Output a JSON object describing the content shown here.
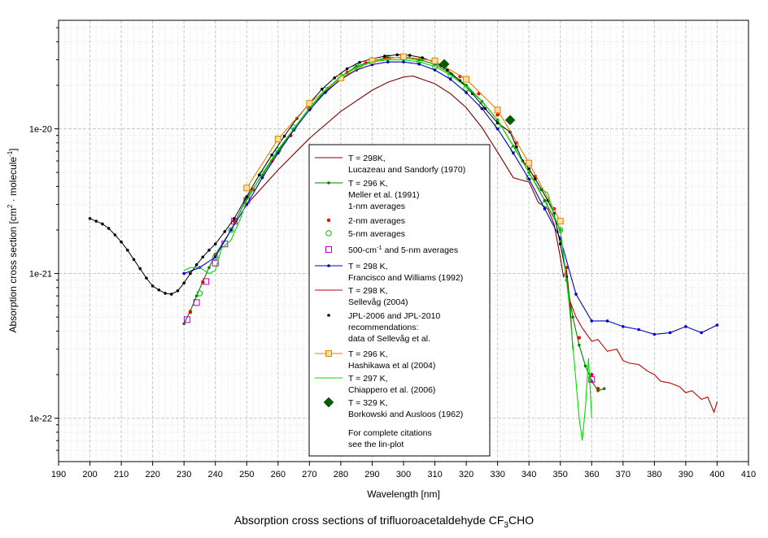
{
  "chart_data": {
    "type": "line",
    "y_scale": "log",
    "xlim": [
      190,
      410
    ],
    "ylim_log10": [
      -22.3,
      -19.25
    ],
    "x_ticks": [
      190,
      200,
      210,
      220,
      230,
      240,
      250,
      260,
      270,
      280,
      290,
      300,
      310,
      320,
      330,
      340,
      350,
      360,
      370,
      380,
      390,
      400,
      410
    ],
    "y_ticks": [
      {
        "value": 1e-22,
        "label": "1e-22"
      },
      {
        "value": 1e-21,
        "label": "1e-21"
      },
      {
        "value": 1e-20,
        "label": "1e-20"
      }
    ],
    "xlabel": "Wavelength [nm]",
    "ylabel": "Absorption cross section [cm",
    "ylabel_sup1": "2",
    "ylabel_mid": " · molecule",
    "ylabel_sup2": "-1",
    "ylabel_end": "]",
    "grid": true,
    "legend_position": "center-right",
    "series": [
      {
        "name": "lucazeau",
        "color": "#800000",
        "marker": "none",
        "label_lines": [
          "T = 298K,",
          "Lucazeau and Sandorfy (1970)"
        ],
        "x": [
          250,
          260,
          270,
          280,
          290,
          295,
          300,
          303,
          306,
          310,
          315,
          320,
          325,
          330,
          335,
          338,
          340,
          343,
          346,
          348,
          350,
          351,
          352,
          353,
          354
        ],
        "y": [
          3e-21,
          5.2e-21,
          8.6e-21,
          1.32e-20,
          1.85e-20,
          2.1e-20,
          2.28e-20,
          2.32e-20,
          2.2e-20,
          2.05e-20,
          1.75e-20,
          1.4e-20,
          1.02e-20,
          6.9e-21,
          4.6e-21,
          4.4e-21,
          4.3e-21,
          3.1e-21,
          2.8e-21,
          2.2e-21,
          1.3e-21,
          9.5e-22,
          1.05e-21,
          6.5e-22,
          3e-22
        ]
      },
      {
        "name": "meller_1nm",
        "color": "#008000",
        "marker": "dot",
        "label_lines": [
          "T = 296 K,",
          "Meller et al. (1991)",
          "1-nm averages"
        ],
        "x": [
          230,
          232,
          234,
          236,
          238,
          240,
          245,
          250,
          255,
          260,
          265,
          270,
          275,
          280,
          285,
          290,
          295,
          300,
          305,
          310,
          315,
          320,
          325,
          330,
          335,
          340,
          345,
          350,
          352,
          354,
          356,
          358,
          360,
          362,
          364
        ],
        "y": [
          4.5e-22,
          5.5e-22,
          7e-22,
          8.8e-22,
          1.1e-21,
          1.35e-21,
          2e-21,
          3.3e-21,
          4.8e-21,
          7e-21,
          1e-20,
          1.4e-20,
          1.8e-20,
          2.3e-20,
          2.7e-20,
          2.95e-20,
          3.1e-20,
          3.1e-20,
          3e-20,
          2.8e-20,
          2.4e-20,
          2e-20,
          1.55e-20,
          1.15e-20,
          7.6e-21,
          5e-21,
          3.2e-21,
          2e-21,
          9e-22,
          5e-22,
          3.2e-22,
          2.3e-22,
          1.8e-22,
          1.55e-22,
          1.6e-22
        ]
      },
      {
        "name": "two_nm",
        "color": "#ff0000",
        "marker": "reddot",
        "label_lines": [
          "2-nm averages"
        ],
        "x": [
          232,
          236,
          240,
          246,
          252,
          258,
          264,
          270,
          276,
          282,
          288,
          294,
          300,
          306,
          312,
          318,
          324,
          330,
          336,
          342,
          348,
          352,
          356,
          360,
          362
        ],
        "y": [
          5.4e-22,
          8.7e-22,
          1.35e-21,
          2.3e-21,
          3.8e-21,
          6e-21,
          9e-21,
          1.38e-20,
          1.9e-20,
          2.45e-20,
          2.85e-20,
          3.1e-20,
          3.15e-20,
          3.05e-20,
          2.75e-20,
          2.3e-20,
          1.75e-20,
          1.25e-20,
          8e-21,
          4.7e-21,
          2.8e-21,
          1.1e-21,
          3.6e-22,
          2e-22,
          1.6e-22
        ]
      },
      {
        "name": "five_nm",
        "color": "#00c000",
        "marker": "circle",
        "label_lines": [
          "5-nm averages"
        ],
        "x": [
          235,
          240,
          245,
          250,
          255,
          260,
          265,
          270,
          275,
          280,
          285,
          290,
          295,
          300,
          305,
          310,
          315,
          320,
          325,
          330,
          335,
          340,
          345,
          350
        ],
        "y": [
          7.3e-22,
          1.3e-21,
          2e-21,
          3.2e-21,
          4.9e-21,
          7.1e-21,
          1.02e-20,
          1.4e-20,
          1.85e-20,
          2.3e-20,
          2.7e-20,
          2.95e-20,
          3.1e-20,
          3.1e-20,
          2.95e-20,
          2.7e-20,
          2.35e-20,
          1.9e-20,
          1.45e-20,
          1.05e-20,
          7.2e-21,
          4.6e-21,
          3e-21,
          2e-21
        ]
      },
      {
        "name": "five_hundred",
        "color": "#c000c0",
        "marker": "square",
        "label_lines": [
          "500-cm",
          "-1",
          " and 5-nm averages"
        ],
        "x": [
          231,
          234,
          237,
          240,
          243,
          246,
          250,
          360
        ],
        "y": [
          4.8e-22,
          6.3e-22,
          8.8e-22,
          1.18e-21,
          1.6e-21,
          2.3e-21,
          3.2e-21,
          1.85e-22
        ]
      },
      {
        "name": "francisco",
        "color": "#0000c0",
        "marker": "dot",
        "label_lines": [
          "T = 298 K,",
          "Francisco and Williams (1992)"
        ],
        "x": [
          230,
          235,
          240,
          245,
          250,
          255,
          260,
          265,
          270,
          275,
          280,
          285,
          290,
          295,
          300,
          305,
          310,
          315,
          320,
          325,
          330,
          335,
          340,
          345,
          350,
          355,
          360,
          365,
          370,
          375,
          380,
          385,
          390,
          395,
          400
        ],
        "y": [
          1e-21,
          1.1e-21,
          1.3e-21,
          2e-21,
          3e-21,
          4.6e-21,
          6.8e-21,
          9.8e-21,
          1.35e-20,
          1.78e-20,
          2.2e-20,
          2.55e-20,
          2.78e-20,
          2.9e-20,
          2.9e-20,
          2.8e-20,
          2.55e-20,
          2.2e-20,
          1.78e-20,
          1.38e-20,
          1e-20,
          6.8e-21,
          4.5e-21,
          2.8e-21,
          1.75e-21,
          7.2e-22,
          4.7e-22,
          4.7e-22,
          4.3e-22,
          4.1e-22,
          3.8e-22,
          3.9e-22,
          4.3e-22,
          3.9e-22,
          4.4e-22
        ]
      },
      {
        "name": "sellevag",
        "color": "#c00000",
        "marker": "none",
        "label_lines": [
          "T = 298 K,",
          "Sellevåg (2004)"
        ],
        "x": [
          353,
          355,
          357,
          360,
          362,
          365,
          368,
          370,
          372,
          375,
          378,
          380,
          382,
          385,
          388,
          390,
          392,
          395,
          397,
          399,
          400
        ],
        "y": [
          6.5e-22,
          5e-22,
          4.2e-22,
          3.4e-22,
          3.5e-22,
          2.9e-22,
          3e-22,
          2.5e-22,
          2.4e-22,
          2.35e-22,
          2.1e-22,
          2e-22,
          1.8e-22,
          1.75e-22,
          1.65e-22,
          1.5e-22,
          1.55e-22,
          1.35e-22,
          1.4e-22,
          1.1e-22,
          1.3e-22
        ]
      },
      {
        "name": "jpl",
        "color": "#000000",
        "marker": "blackdot",
        "label_lines": [
          "JPL-2006 and JPL-2010",
          "recommendations:",
          "data of Sellevåg et al."
        ],
        "x": [
          200,
          202,
          204,
          206,
          208,
          210,
          212,
          214,
          216,
          218,
          220,
          222,
          224,
          226,
          228,
          230,
          232,
          234,
          236,
          238,
          240,
          243,
          246,
          250,
          254,
          258,
          262,
          266,
          270,
          274,
          278,
          282,
          286,
          290,
          294,
          298,
          302,
          306,
          310,
          314,
          318,
          322,
          326,
          330,
          334,
          336,
          338,
          340,
          342,
          344,
          346,
          348,
          350,
          352
        ],
        "y": [
          2.4e-21,
          2.3e-21,
          2.2e-21,
          2.05e-21,
          1.85e-21,
          1.65e-21,
          1.45e-21,
          1.25e-21,
          1.08e-21,
          9.3e-22,
          8.2e-22,
          7.7e-22,
          7.3e-22,
          7.2e-22,
          7.6e-22,
          8.6e-22,
          1e-21,
          1.15e-21,
          1.3e-21,
          1.45e-21,
          1.6e-21,
          1.95e-21,
          2.4e-21,
          3.4e-21,
          4.8e-21,
          6.6e-21,
          8.9e-21,
          1.18e-20,
          1.5e-20,
          1.88e-20,
          2.25e-20,
          2.6e-20,
          2.88e-20,
          3.05e-20,
          3.18e-20,
          3.25e-20,
          3.22e-20,
          3.1e-20,
          2.88e-20,
          2.55e-20,
          2.15e-20,
          1.75e-20,
          1.38e-20,
          1.1e-20,
          9.5e-21,
          7.5e-21,
          6e-21,
          5.3e-21,
          4.5e-21,
          3.8e-21,
          3.2e-21,
          2.6e-21,
          1.6e-21,
          9.5e-22
        ]
      },
      {
        "name": "hashikawa",
        "color": "#e08000",
        "marker": "osquare",
        "label_lines": [
          "T = 296 K,",
          "Hashikawa et al (2004)"
        ],
        "x": [
          250,
          260,
          270,
          280,
          290,
          300,
          310,
          320,
          330,
          340,
          350
        ],
        "y": [
          3.9e-21,
          8.5e-21,
          1.5e-20,
          2.25e-20,
          2.95e-20,
          3.15e-20,
          2.95e-20,
          2.2e-20,
          1.35e-20,
          5.8e-21,
          2.3e-21
        ]
      },
      {
        "name": "chiappero",
        "color": "#00dd00",
        "marker": "none",
        "label_lines": [
          "T = 297 K,",
          "Chiappero et al. (2006)"
        ],
        "x": [
          230,
          232,
          235,
          238,
          240,
          242,
          245,
          248,
          250,
          255,
          260,
          265,
          270,
          275,
          280,
          285,
          290,
          295,
          300,
          305,
          310,
          315,
          320,
          325,
          330,
          335,
          340,
          343,
          346,
          348,
          350,
          352,
          353,
          354,
          355,
          356,
          357,
          358,
          359,
          360
        ],
        "y": [
          1.05e-21,
          1.1e-21,
          1.1e-21,
          1e-21,
          1.05e-21,
          1.5e-21,
          1.7e-21,
          2.4e-21,
          3.2e-21,
          4.9e-21,
          7.2e-21,
          1e-20,
          1.4e-20,
          1.85e-20,
          2.3e-20,
          2.65e-20,
          2.9e-20,
          3e-20,
          3e-20,
          2.9e-20,
          2.7e-20,
          2.35e-20,
          1.95e-20,
          1.55e-20,
          1.15e-20,
          7.6e-21,
          5e-21,
          3.9e-21,
          3.6e-21,
          2.5e-21,
          2e-21,
          9e-22,
          5.5e-22,
          3.2e-22,
          1.8e-22,
          1e-22,
          7e-23,
          1.2e-22,
          2.6e-22,
          1e-22
        ]
      },
      {
        "name": "borkowski",
        "color": "#006000",
        "marker": "diamond",
        "label_lines": [
          "T = 329 K,",
          "Borkowski and Ausloos (1962)"
        ],
        "x": [
          313,
          334
        ],
        "y": [
          2.8e-20,
          1.15e-20
        ]
      }
    ],
    "legend_note": [
      "For complete citations",
      "see the lin-plot"
    ],
    "caption_main": "Absorption cross sections of trifluoroacetaldehyde CF",
    "caption_sub": "3",
    "caption_end": "CHO"
  }
}
